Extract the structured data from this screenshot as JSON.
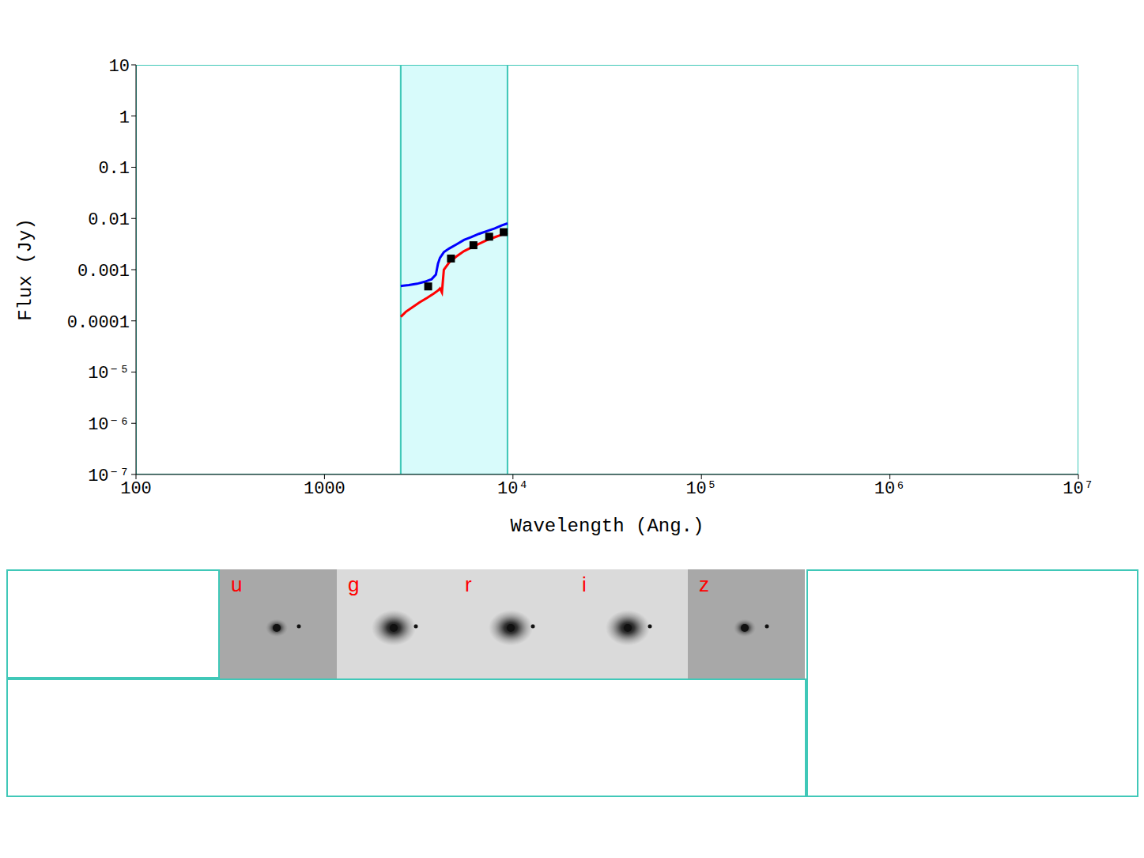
{
  "chart_data": {
    "type": "line",
    "log": true,
    "grid": false,
    "xlabel": "Wavelength (Ang.)",
    "ylabel": "Flux (Jy)",
    "xlim": [
      100,
      10000000
    ],
    "ylim": [
      1e-07,
      10
    ],
    "xticks": [
      100,
      1000,
      {
        "value": 10000,
        "label": "10⁴"
      },
      {
        "value": 100000,
        "label": "10⁵"
      },
      {
        "value": 1000000,
        "label": "10⁶"
      },
      {
        "value": 10000000,
        "label": "10⁷"
      }
    ],
    "yticks": [
      {
        "value": 1e-07,
        "label": "10⁻⁷"
      },
      {
        "value": 1e-06,
        "label": "10⁻⁶"
      },
      {
        "value": 1e-05,
        "label": "10⁻⁵"
      },
      0.0001,
      0.001,
      0.01,
      0.1,
      1,
      10
    ],
    "highlight": [
      2540,
      9360
    ],
    "series": [
      {
        "type": "line",
        "color": "#0000ff",
        "x": [
          2540,
          2800,
          3100,
          3400,
          3700,
          3900,
          4000,
          4100,
          4300,
          4600,
          5000,
          5500,
          6000,
          6600,
          7200,
          8000,
          8700,
          9360
        ],
        "values": [
          0.00048,
          0.0005,
          0.00053,
          0.00058,
          0.00065,
          0.0008,
          0.0013,
          0.0017,
          0.0022,
          0.0026,
          0.0031,
          0.0038,
          0.0043,
          0.005,
          0.0056,
          0.0064,
          0.0073,
          0.008
        ]
      },
      {
        "type": "line",
        "color": "#ff0000",
        "x": [
          2540,
          2700,
          2900,
          3200,
          3500,
          3800,
          4000,
          4100,
          4200,
          4300,
          4600,
          5000,
          5500,
          6000,
          6600,
          7200,
          8000,
          8700,
          9360
        ],
        "values": [
          0.00012,
          0.00015,
          0.00018,
          0.00023,
          0.00028,
          0.00034,
          0.00039,
          0.00043,
          0.00036,
          0.001,
          0.0014,
          0.0018,
          0.0023,
          0.0027,
          0.0032,
          0.0037,
          0.0043,
          0.0048,
          0.0052
        ]
      },
      {
        "type": "scatter",
        "marker": "square",
        "color": "#000000",
        "x": [
          3550,
          4690,
          6170,
          7480,
          8930
        ],
        "values": [
          0.00047,
          0.00165,
          0.003,
          0.0044,
          0.0054
        ]
      }
    ]
  },
  "image_strip": {
    "bands": [
      "u",
      "g",
      "r",
      "i",
      "z"
    ],
    "color": "#ff0000"
  }
}
